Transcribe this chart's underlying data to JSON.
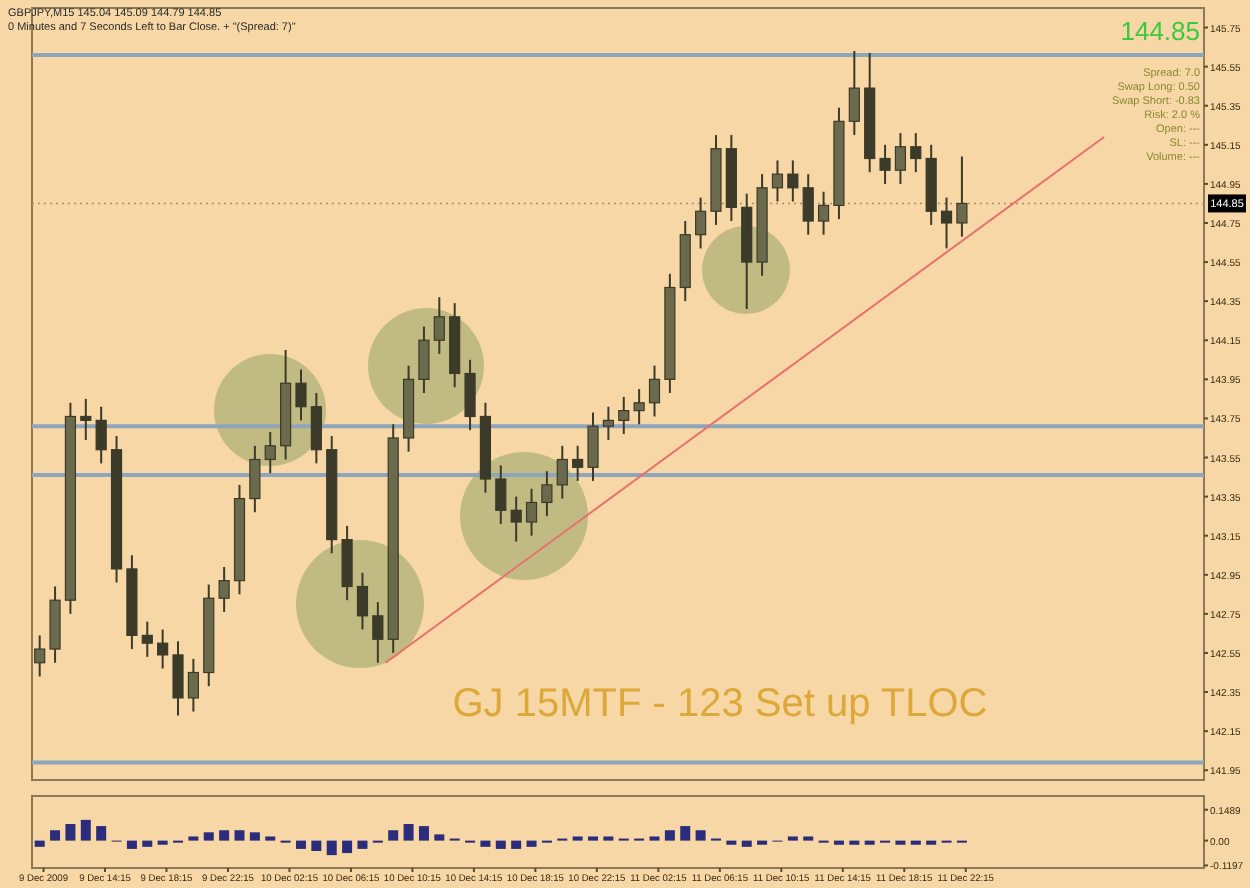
{
  "chart_data": [
    {
      "type": "candlestick",
      "title": "GJ 15MTF - 123 Set up TLOC",
      "color": "#3c3a28",
      "x": [
        "2009-12-09T10:00",
        "2009-12-09T11:00",
        "2009-12-09T12:00",
        "2009-12-09T13:00",
        "2009-12-09T14:00",
        "2009-12-09T15:00",
        "2009-12-09T16:00",
        "2009-12-09T17:00",
        "2009-12-09T18:00",
        "2009-12-09T19:00",
        "2009-12-09T20:00",
        "2009-12-09T21:00",
        "2009-12-09T22:00",
        "2009-12-09T23:00",
        "2009-12-10T00:00",
        "2009-12-10T01:00",
        "2009-12-10T02:00",
        "2009-12-10T03:00",
        "2009-12-10T04:00",
        "2009-12-10T05:00",
        "2009-12-10T06:00",
        "2009-12-10T07:00",
        "2009-12-10T08:00",
        "2009-12-10T09:00",
        "2009-12-10T10:00",
        "2009-12-10T11:00",
        "2009-12-10T12:00",
        "2009-12-10T13:00",
        "2009-12-10T14:00",
        "2009-12-10T15:00",
        "2009-12-10T16:00",
        "2009-12-10T17:00",
        "2009-12-10T18:00",
        "2009-12-10T19:00",
        "2009-12-10T20:00",
        "2009-12-10T21:00",
        "2009-12-10T22:00",
        "2009-12-10T23:00",
        "2009-12-11T00:00",
        "2009-12-11T01:00",
        "2009-12-11T02:00",
        "2009-12-11T03:00",
        "2009-12-11T04:00",
        "2009-12-11T05:00",
        "2009-12-11T06:00",
        "2009-12-11T07:00",
        "2009-12-11T08:00",
        "2009-12-11T09:00",
        "2009-12-11T10:00",
        "2009-12-11T11:00",
        "2009-12-11T12:00",
        "2009-12-11T13:00",
        "2009-12-11T14:00",
        "2009-12-11T15:00",
        "2009-12-11T16:00",
        "2009-12-11T17:00",
        "2009-12-11T18:00",
        "2009-12-11T19:00",
        "2009-12-11T20:00",
        "2009-12-11T21:00",
        "2009-12-11T22:00"
      ],
      "ohlc": [
        [
          142.5,
          142.64,
          142.43,
          142.57
        ],
        [
          142.57,
          142.89,
          142.5,
          142.82
        ],
        [
          142.82,
          143.83,
          142.75,
          143.76
        ],
        [
          143.76,
          143.85,
          143.64,
          143.74
        ],
        [
          143.74,
          143.81,
          143.52,
          143.59
        ],
        [
          143.59,
          143.66,
          142.91,
          142.98
        ],
        [
          142.98,
          143.05,
          142.57,
          142.64
        ],
        [
          142.64,
          142.71,
          142.53,
          142.6
        ],
        [
          142.6,
          142.67,
          142.47,
          142.54
        ],
        [
          142.54,
          142.61,
          142.23,
          142.32
        ],
        [
          142.32,
          142.52,
          142.25,
          142.45
        ],
        [
          142.45,
          142.9,
          142.38,
          142.83
        ],
        [
          142.83,
          142.99,
          142.76,
          142.92
        ],
        [
          142.92,
          143.41,
          142.85,
          143.34
        ],
        [
          143.34,
          143.61,
          143.27,
          143.54
        ],
        [
          143.54,
          143.68,
          143.47,
          143.61
        ],
        [
          143.61,
          144.1,
          143.54,
          143.93
        ],
        [
          143.93,
          144.0,
          143.74,
          143.81
        ],
        [
          143.81,
          143.88,
          143.52,
          143.59
        ],
        [
          143.59,
          143.66,
          143.06,
          143.13
        ],
        [
          143.13,
          143.2,
          142.82,
          142.89
        ],
        [
          142.89,
          142.96,
          142.67,
          142.74
        ],
        [
          142.74,
          142.81,
          142.5,
          142.62
        ],
        [
          142.62,
          143.72,
          142.55,
          143.65
        ],
        [
          143.65,
          144.02,
          143.58,
          143.95
        ],
        [
          143.95,
          144.22,
          143.88,
          144.15
        ],
        [
          144.15,
          144.37,
          144.08,
          144.27
        ],
        [
          144.27,
          144.34,
          143.91,
          143.98
        ],
        [
          143.98,
          144.05,
          143.69,
          143.76
        ],
        [
          143.76,
          143.83,
          143.37,
          143.44
        ],
        [
          143.44,
          143.51,
          143.21,
          143.28
        ],
        [
          143.28,
          143.35,
          143.12,
          143.22
        ],
        [
          143.22,
          143.39,
          143.15,
          143.32
        ],
        [
          143.32,
          143.48,
          143.25,
          143.41
        ],
        [
          143.41,
          143.61,
          143.34,
          143.54
        ],
        [
          143.54,
          143.61,
          143.43,
          143.5
        ],
        [
          143.5,
          143.78,
          143.43,
          143.71
        ],
        [
          143.71,
          143.81,
          143.64,
          143.74
        ],
        [
          143.74,
          143.86,
          143.67,
          143.79
        ],
        [
          143.79,
          143.9,
          143.72,
          143.83
        ],
        [
          143.83,
          144.02,
          143.76,
          143.95
        ],
        [
          143.95,
          144.49,
          143.88,
          144.42
        ],
        [
          144.42,
          144.76,
          144.35,
          144.69
        ],
        [
          144.69,
          144.88,
          144.62,
          144.81
        ],
        [
          144.81,
          145.2,
          144.74,
          145.13
        ],
        [
          145.13,
          145.2,
          144.76,
          144.83
        ],
        [
          144.83,
          144.9,
          144.31,
          144.55
        ],
        [
          144.55,
          145.0,
          144.48,
          144.93
        ],
        [
          144.93,
          145.07,
          144.86,
          145.0
        ],
        [
          145.0,
          145.07,
          144.86,
          144.93
        ],
        [
          144.93,
          145.0,
          144.69,
          144.76
        ],
        [
          144.76,
          144.91,
          144.69,
          144.84
        ],
        [
          144.84,
          145.34,
          144.77,
          145.27
        ],
        [
          145.27,
          145.63,
          145.2,
          145.44
        ],
        [
          145.44,
          145.62,
          145.01,
          145.08
        ],
        [
          145.08,
          145.15,
          144.95,
          145.02
        ],
        [
          145.02,
          145.21,
          144.95,
          145.14
        ],
        [
          145.14,
          145.21,
          145.01,
          145.08
        ],
        [
          145.08,
          145.15,
          144.74,
          144.81
        ],
        [
          144.81,
          144.88,
          144.62,
          144.75
        ],
        [
          144.75,
          145.09,
          144.68,
          144.85
        ]
      ],
      "series": [
        {
          "type": "line",
          "color": "#e87070",
          "x": [
            "2009-12-10T08:30",
            "2009-12-12T07:15"
          ],
          "values": [
            142.5,
            145.19
          ]
        }
      ],
      "xlim": [
        "2009-12-09T09:30",
        "2009-12-12T13:45"
      ],
      "ylim": [
        141.9,
        145.85
      ],
      "yticks": [
        145.75,
        145.55,
        145.35,
        145.15,
        144.95,
        144.75,
        144.55,
        144.35,
        144.15,
        143.95,
        143.75,
        143.55,
        143.35,
        143.15,
        142.95,
        142.75,
        142.55,
        142.35,
        142.15,
        141.95
      ],
      "tick_labels": "y",
      "ref_lines": [
        {
          "axis": "y",
          "value": 145.61,
          "color": "#8ea6bc"
        },
        {
          "axis": "y",
          "value": 143.71,
          "color": "#8ea6bc"
        },
        {
          "axis": "y",
          "value": 143.46,
          "color": "#8ea6bc"
        },
        {
          "axis": "y",
          "value": 141.99,
          "color": "#8ea6bc"
        },
        {
          "axis": "y",
          "value": 144.85,
          "label": "144.85",
          "color": "#a09070",
          "line_style": "dotted"
        }
      ],
      "annotations": [
        "GBPJPY,M15  145.04 145.09 144.79 144.85",
        "0 Minutes and 7 Seconds Left to Bar Close. + \"(Spread: 7)\"",
        "144.85",
        "Spread: 7.0",
        "Swap Long: 0.50",
        "Swap Short: -0.83",
        "Risk: 2.0 %",
        "Open: ---",
        "SL: ---",
        "Volume: ---"
      ]
    },
    {
      "type": "bar",
      "color": "#2c2c7c",
      "x": [
        "2009-12-09T10:00",
        "2009-12-09T11:00",
        "2009-12-09T12:00",
        "2009-12-09T13:00",
        "2009-12-09T14:00",
        "2009-12-09T15:00",
        "2009-12-09T16:00",
        "2009-12-09T17:00",
        "2009-12-09T18:00",
        "2009-12-09T19:00",
        "2009-12-09T20:00",
        "2009-12-09T21:00",
        "2009-12-09T22:00",
        "2009-12-09T23:00",
        "2009-12-10T00:00",
        "2009-12-10T01:00",
        "2009-12-10T02:00",
        "2009-12-10T03:00",
        "2009-12-10T04:00",
        "2009-12-10T05:00",
        "2009-12-10T06:00",
        "2009-12-10T07:00",
        "2009-12-10T08:00",
        "2009-12-10T09:00",
        "2009-12-10T10:00",
        "2009-12-10T11:00",
        "2009-12-10T12:00",
        "2009-12-10T13:00",
        "2009-12-10T14:00",
        "2009-12-10T15:00",
        "2009-12-10T16:00",
        "2009-12-10T17:00",
        "2009-12-10T18:00",
        "2009-12-10T19:00",
        "2009-12-10T20:00",
        "2009-12-10T21:00",
        "2009-12-10T22:00",
        "2009-12-10T23:00",
        "2009-12-11T00:00",
        "2009-12-11T01:00",
        "2009-12-11T02:00",
        "2009-12-11T03:00",
        "2009-12-11T04:00",
        "2009-12-11T05:00",
        "2009-12-11T06:00",
        "2009-12-11T07:00",
        "2009-12-11T08:00",
        "2009-12-11T09:00",
        "2009-12-11T10:00",
        "2009-12-11T11:00",
        "2009-12-11T12:00",
        "2009-12-11T13:00",
        "2009-12-11T14:00",
        "2009-12-11T15:00",
        "2009-12-11T16:00",
        "2009-12-11T17:00",
        "2009-12-11T18:00",
        "2009-12-11T19:00",
        "2009-12-11T20:00",
        "2009-12-11T21:00",
        "2009-12-11T22:00"
      ],
      "values": [
        -0.03,
        0.05,
        0.08,
        0.1,
        0.07,
        0,
        -0.04,
        -0.03,
        -0.02,
        -0.01,
        0.02,
        0.04,
        0.05,
        0.05,
        0.04,
        0.02,
        -0.01,
        -0.04,
        -0.05,
        -0.07,
        -0.06,
        -0.04,
        -0.01,
        0.05,
        0.08,
        0.07,
        0.03,
        0.01,
        -0.01,
        -0.03,
        -0.04,
        -0.04,
        -0.03,
        -0.01,
        0.01,
        0.02,
        0.02,
        0.02,
        0.01,
        0.01,
        0.02,
        0.05,
        0.07,
        0.05,
        0.01,
        -0.02,
        -0.03,
        -0.02,
        0,
        0.02,
        0.02,
        -0.01,
        -0.02,
        -0.02,
        -0.02,
        -0.01,
        -0.02,
        -0.02,
        -0.02,
        -0.01,
        -0.01
      ],
      "xlim": [
        "2009-12-09T09:30",
        "2009-12-12T13:45"
      ],
      "xticks": [
        {
          "value": "2009-12-09T10:15",
          "label": "9 Dec 2009"
        },
        {
          "value": "2009-12-09T14:15",
          "label": "9 Dec 14:15"
        },
        {
          "value": "2009-12-09T18:15",
          "label": "9 Dec 18:15"
        },
        {
          "value": "2009-12-09T22:15",
          "label": "9 Dec 22:15"
        },
        {
          "value": "2009-12-10T02:15",
          "label": "10 Dec 02:15"
        },
        {
          "value": "2009-12-10T06:15",
          "label": "10 Dec 06:15"
        },
        {
          "value": "2009-12-10T10:15",
          "label": "10 Dec 10:15"
        },
        {
          "value": "2009-12-10T14:15",
          "label": "10 Dec 14:15"
        },
        {
          "value": "2009-12-10T18:15",
          "label": "10 Dec 18:15"
        },
        {
          "value": "2009-12-10T22:15",
          "label": "10 Dec 22:15"
        },
        {
          "value": "2009-12-11T02:15",
          "label": "11 Dec 02:15"
        },
        {
          "value": "2009-12-11T06:15",
          "label": "11 Dec 06:15"
        },
        {
          "value": "2009-12-11T10:15",
          "label": "11 Dec 10:15"
        },
        {
          "value": "2009-12-11T14:15",
          "label": "11 Dec 14:15"
        },
        {
          "value": "2009-12-11T18:15",
          "label": "11 Dec 18:15"
        },
        {
          "value": "2009-12-11T22:15",
          "label": "11 Dec 22:15"
        }
      ],
      "ylim": [
        -0.132,
        0.215
      ],
      "yticks": [
        0.1489,
        {
          "value": 0,
          "label": "0.00"
        },
        -0.1197
      ]
    }
  ]
}
